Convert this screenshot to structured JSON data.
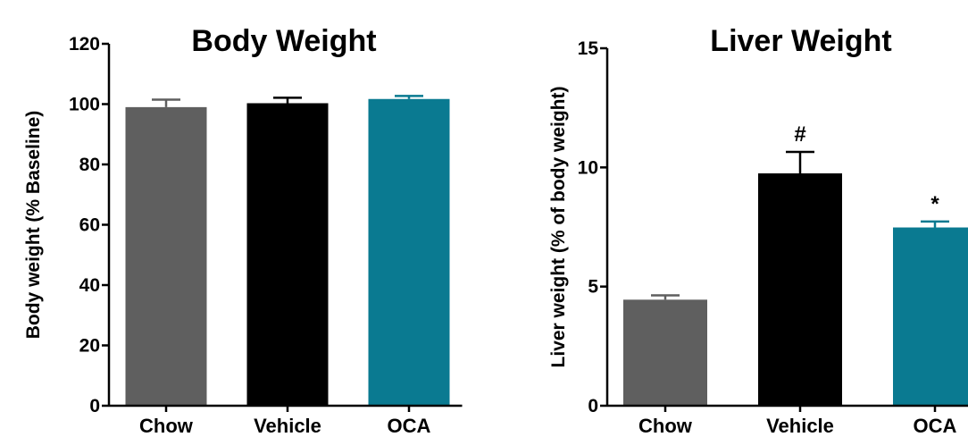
{
  "chart_data": [
    {
      "type": "bar",
      "title": "Body Weight",
      "xlabel": "",
      "ylabel": "Body weight (% Baseline)",
      "ylim": [
        0,
        120
      ],
      "yticks": [
        0,
        20,
        40,
        60,
        80,
        100,
        120
      ],
      "categories": [
        "Chow",
        "Vehicle",
        "OCA"
      ],
      "values": [
        99,
        100.3,
        101.7
      ],
      "errors": [
        2.5,
        1.8,
        1.0
      ],
      "annotations": [
        "",
        "",
        ""
      ],
      "colors": [
        "#5f5f5f",
        "#000000",
        "#0a7a91"
      ],
      "grid": false
    },
    {
      "type": "bar",
      "title": "Liver Weight",
      "xlabel": "",
      "ylabel": "Liver weight (% of body weight)",
      "ylim": [
        0,
        15
      ],
      "yticks": [
        0,
        5,
        10,
        15
      ],
      "categories": [
        "Chow",
        "Vehicle",
        "OCA"
      ],
      "values": [
        4.45,
        9.75,
        7.48
      ],
      "errors": [
        0.18,
        0.9,
        0.25
      ],
      "annotations": [
        "",
        "#",
        "*"
      ],
      "colors": [
        "#5f5f5f",
        "#000000",
        "#0a7a91"
      ],
      "grid": false
    }
  ]
}
